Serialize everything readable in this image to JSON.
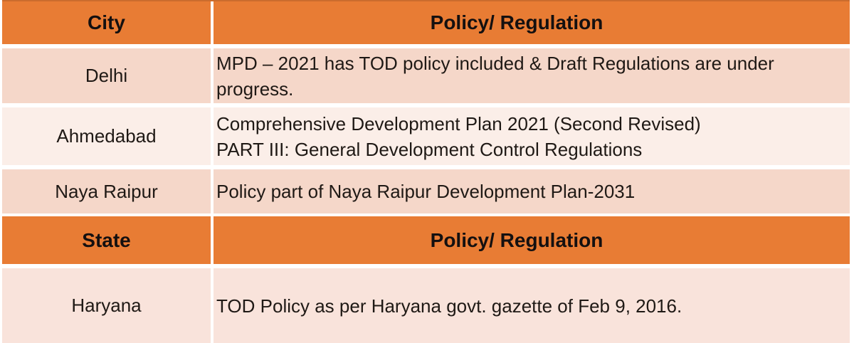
{
  "colors": {
    "header_bg": "#E87C34",
    "header_top_edge": "#CB6C2D",
    "row_band_dark": "#F5D7C9",
    "row_band_light": "#FBEEE8",
    "row_band_bottom": "#F9E3DB",
    "gutter": "#FFFFFF",
    "body_text": "#1F1915",
    "header_text": "#141010"
  },
  "city_table": {
    "header": {
      "col1": "City",
      "col2": "Policy/ Regulation"
    },
    "rows": [
      {
        "name": "Delhi",
        "policy_lines": [
          "MPD – 2021 has TOD policy included & Draft Regulations are under progress."
        ]
      },
      {
        "name": "Ahmedabad",
        "policy_lines": [
          "Comprehensive Development Plan 2021 (Second Revised)",
          "PART III: General Development Control Regulations"
        ]
      },
      {
        "name": "Naya Raipur",
        "policy_lines": [
          "Policy part of Naya Raipur Development Plan-2031"
        ]
      }
    ]
  },
  "state_table": {
    "header": {
      "col1": "State",
      "col2": "Policy/ Regulation"
    },
    "rows": [
      {
        "name": "Haryana",
        "policy_lines": [
          "TOD Policy as per Haryana govt. gazette of Feb 9, 2016."
        ]
      }
    ]
  }
}
